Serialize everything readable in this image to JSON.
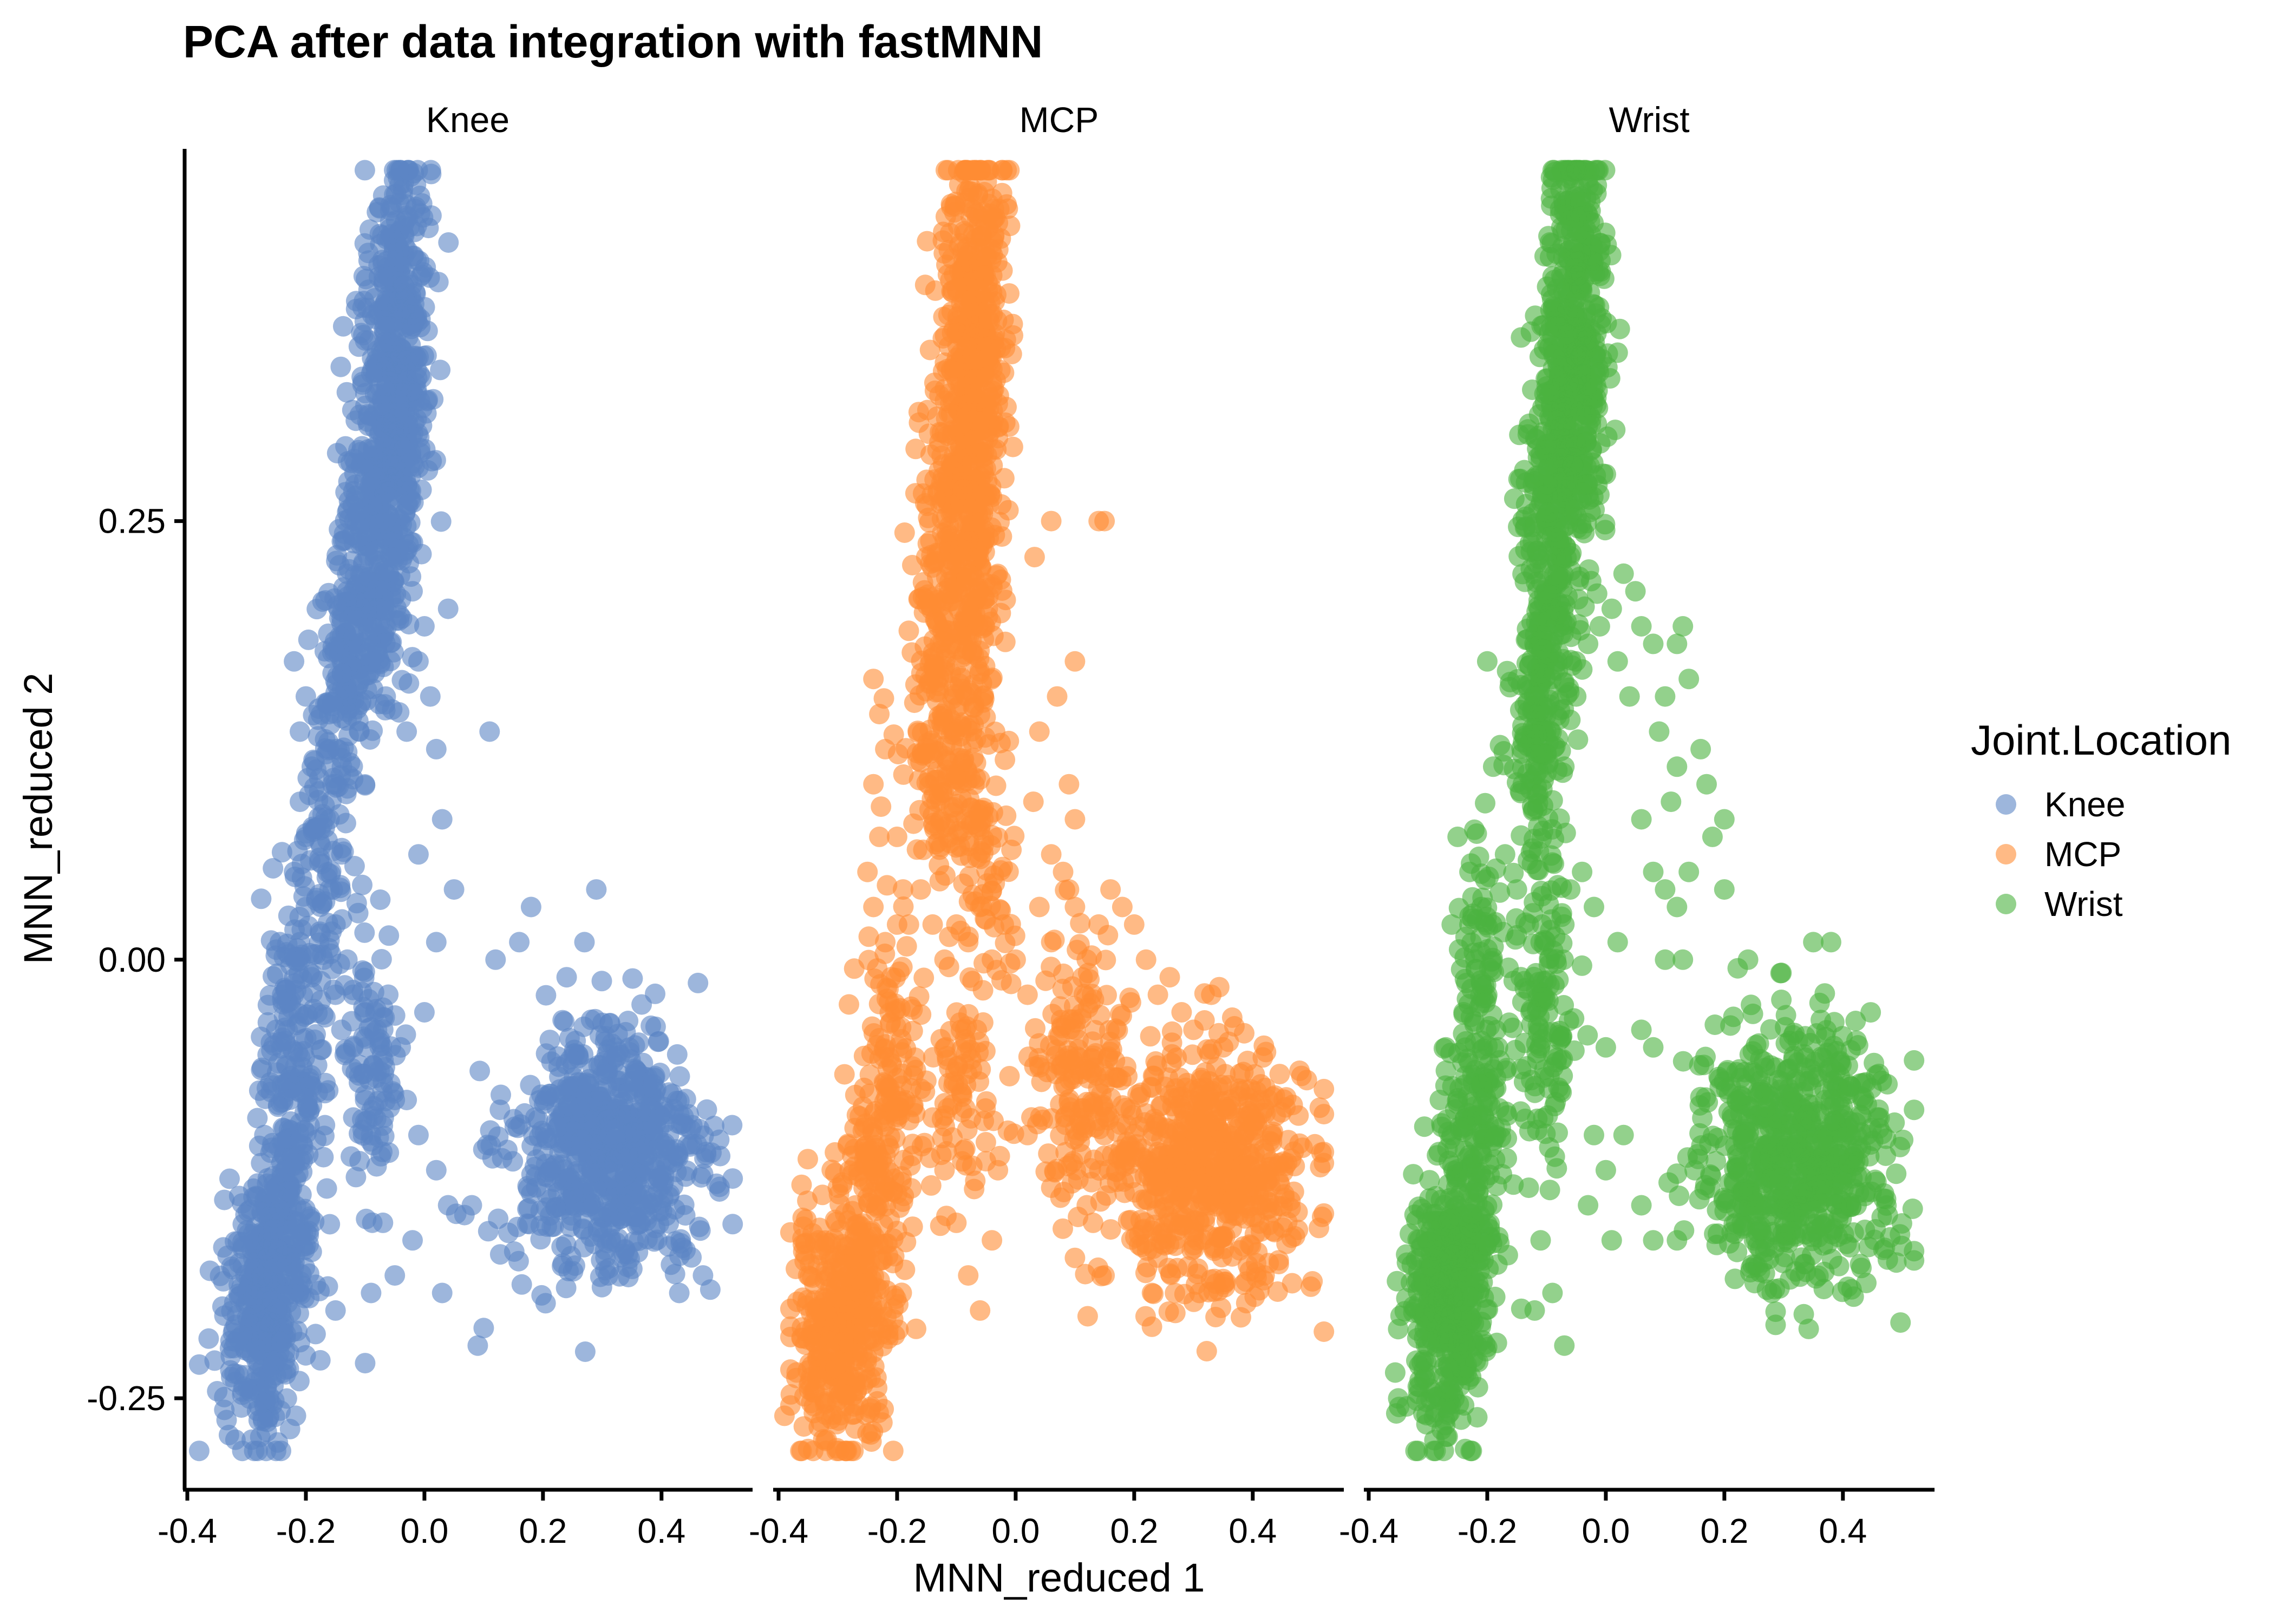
{
  "chart_data": {
    "type": "scatter",
    "title": "PCA after data integration with fastMNN",
    "xlabel": "MNN_reduced 1",
    "ylabel": "MNN_reduced 2",
    "xlim": [
      -0.4,
      0.55
    ],
    "ylim": [
      -0.3,
      0.46
    ],
    "x_ticks": [
      -0.4,
      -0.2,
      0.0,
      0.2,
      0.4
    ],
    "x_tick_labels": [
      "-0.4",
      "-0.2",
      "0.0",
      "0.2",
      "0.4"
    ],
    "y_ticks": [
      0.25,
      0.0,
      -0.25
    ],
    "y_tick_labels": [
      "0.25",
      "0.00",
      "-0.25"
    ],
    "grid": false,
    "facets": [
      "Knee",
      "MCP",
      "Wrist"
    ],
    "legend": {
      "title": "Joint.Location",
      "placement": "right",
      "entries": [
        "Knee",
        "MCP",
        "Wrist"
      ]
    },
    "colors": {
      "Knee": "#5B86C5",
      "MCP": "#FF8C33",
      "Wrist": "#4BB33F"
    },
    "point_opacity": 0.6,
    "series": [
      {
        "name": "Knee",
        "facet": "Knee",
        "points": [
          [
            -0.22,
            0.17
          ],
          [
            -0.2,
            0.15
          ],
          [
            -0.21,
            0.13
          ],
          [
            -0.19,
            0.11
          ],
          [
            -0.21,
            0.09
          ],
          [
            -0.2,
            0.07
          ],
          [
            -0.22,
            0.05
          ],
          [
            -0.2,
            0.03
          ],
          [
            -0.21,
            0.01
          ],
          [
            -0.19,
            -0.01
          ],
          [
            -0.16,
            0.12
          ],
          [
            -0.15,
            0.1
          ],
          [
            -0.16,
            0.08
          ],
          [
            -0.14,
            0.06
          ],
          [
            -0.16,
            0.04
          ],
          [
            -0.15,
            0.02
          ],
          [
            -0.17,
            0.0
          ],
          [
            -0.15,
            -0.02
          ],
          [
            -0.13,
            0.0
          ],
          [
            -0.12,
            -0.02
          ],
          [
            -0.14,
            -0.04
          ],
          [
            -0.12,
            -0.05
          ],
          [
            -0.1,
            -0.03
          ],
          [
            -0.11,
            -0.06
          ],
          [
            -0.1,
            -0.08
          ],
          [
            -0.12,
            -0.09
          ],
          [
            -0.08,
            -0.04
          ],
          [
            -0.07,
            -0.07
          ],
          [
            -0.09,
            -0.1
          ],
          [
            -0.06,
            -0.11
          ],
          [
            -0.05,
            -0.08
          ],
          [
            -0.04,
            -0.05
          ],
          [
            -0.02,
            0.21
          ],
          [
            0.0,
            0.19
          ],
          [
            -0.01,
            0.17
          ],
          [
            0.01,
            0.15
          ],
          [
            -0.03,
            0.13
          ],
          [
            0.02,
            0.12
          ],
          [
            0.04,
            0.2
          ],
          [
            0.03,
            0.08
          ],
          [
            -0.01,
            0.06
          ],
          [
            0.05,
            0.04
          ],
          [
            0.02,
            0.01
          ],
          [
            0.0,
            -0.03
          ],
          [
            -0.03,
            -0.08
          ],
          [
            -0.01,
            -0.1
          ],
          [
            0.02,
            -0.12
          ],
          [
            0.04,
            -0.14
          ],
          [
            -0.02,
            -0.16
          ],
          [
            0.03,
            -0.19
          ],
          [
            0.08,
            -0.14
          ],
          [
            0.1,
            -0.21
          ],
          [
            0.11,
            0.13
          ],
          [
            0.12,
            -0.0
          ],
          [
            -0.09,
            -0.19
          ],
          [
            -0.07,
            -0.15
          ],
          [
            -0.05,
            -0.18
          ],
          [
            -0.1,
            -0.23
          ],
          [
            -0.25,
            -0.04
          ],
          [
            -0.26,
            -0.07
          ],
          [
            -0.27,
            -0.1
          ],
          [
            -0.24,
            -0.02
          ],
          [
            0.18,
            0.03
          ],
          [
            0.16,
            0.01
          ],
          [
            0.27,
            0.01
          ],
          [
            0.29,
            0.04
          ],
          [
            0.24,
            -0.01
          ],
          [
            0.31,
            -0.18
          ],
          [
            0.43,
            -0.19
          ],
          [
            0.47,
            -0.18
          ],
          [
            0.09,
            -0.22
          ],
          [
            -0.15,
            -0.2
          ]
        ],
        "dense_regions": [
          {
            "cx": -0.04,
            "cy": 0.37,
            "sx": 0.025,
            "sy": 0.05,
            "n": 320
          },
          {
            "cx": -0.06,
            "cy": 0.29,
            "sx": 0.03,
            "sy": 0.045,
            "n": 280
          },
          {
            "cx": -0.09,
            "cy": 0.22,
            "sx": 0.03,
            "sy": 0.04,
            "n": 200
          },
          {
            "cx": -0.13,
            "cy": 0.16,
            "sx": 0.025,
            "sy": 0.035,
            "n": 120
          },
          {
            "cx": -0.17,
            "cy": 0.06,
            "sx": 0.02,
            "sy": 0.05,
            "n": 90
          },
          {
            "cx": -0.22,
            "cy": -0.05,
            "sx": 0.025,
            "sy": 0.05,
            "n": 160
          },
          {
            "cx": -0.23,
            "cy": -0.13,
            "sx": 0.025,
            "sy": 0.035,
            "n": 120
          },
          {
            "cx": -0.27,
            "cy": -0.2,
            "sx": 0.035,
            "sy": 0.035,
            "n": 360
          },
          {
            "cx": -0.09,
            "cy": -0.06,
            "sx": 0.025,
            "sy": 0.04,
            "n": 90
          },
          {
            "cx": 0.31,
            "cy": -0.11,
            "sx": 0.08,
            "sy": 0.035,
            "n": 700
          }
        ]
      },
      {
        "name": "MCP",
        "facet": "MCP",
        "points": [
          [
            -0.24,
            0.16
          ],
          [
            -0.23,
            0.14
          ],
          [
            -0.22,
            0.12
          ],
          [
            -0.24,
            0.1
          ],
          [
            -0.23,
            0.07
          ],
          [
            -0.25,
            0.05
          ],
          [
            -0.24,
            0.03
          ],
          [
            -0.22,
            0.01
          ],
          [
            -0.2,
            0.02
          ],
          [
            -0.21,
            -0.01
          ],
          [
            -0.2,
            0.07
          ],
          [
            -0.19,
            0.04
          ],
          [
            -0.18,
            0.02
          ],
          [
            -0.16,
            0.04
          ],
          [
            -0.14,
            0.02
          ],
          [
            -0.12,
            0.0
          ],
          [
            -0.1,
            0.02
          ],
          [
            -0.08,
            0.01
          ],
          [
            -0.06,
            0.03
          ],
          [
            -0.04,
            0.0
          ],
          [
            -0.02,
            0.02
          ],
          [
            0.0,
            0.0
          ],
          [
            0.02,
            -0.02
          ],
          [
            0.04,
            0.03
          ],
          [
            0.06,
            0.01
          ],
          [
            0.08,
            0.05
          ],
          [
            0.1,
            0.03
          ],
          [
            0.12,
            0.0
          ],
          [
            0.14,
            0.02
          ],
          [
            0.16,
            0.04
          ],
          [
            0.18,
            0.03
          ],
          [
            0.2,
            0.02
          ],
          [
            0.22,
            0.0
          ],
          [
            0.24,
            -0.02
          ],
          [
            0.26,
            -0.01
          ],
          [
            0.28,
            -0.03
          ],
          [
            0.3,
            -0.04
          ],
          [
            0.33,
            -0.02
          ],
          [
            0.35,
            -0.05
          ],
          [
            0.1,
            0.17
          ],
          [
            0.06,
            0.25
          ],
          [
            0.14,
            0.25
          ],
          [
            0.15,
            0.25
          ],
          [
            0.07,
            0.15
          ],
          [
            0.09,
            0.1
          ],
          [
            0.1,
            0.08
          ],
          [
            0.04,
            0.13
          ],
          [
            0.03,
            0.09
          ],
          [
            0.06,
            0.06
          ],
          [
            -0.14,
            -0.09
          ],
          [
            -0.12,
            -0.12
          ],
          [
            -0.1,
            -0.15
          ],
          [
            -0.08,
            -0.18
          ],
          [
            -0.06,
            -0.2
          ],
          [
            -0.04,
            -0.16
          ],
          [
            -0.03,
            -0.12
          ],
          [
            0.02,
            -0.1
          ],
          [
            0.04,
            -0.06
          ],
          [
            0.06,
            -0.13
          ],
          [
            0.12,
            -0.14
          ],
          [
            0.1,
            -0.17
          ],
          [
            0.15,
            -0.18
          ],
          [
            0.23,
            -0.19
          ],
          [
            0.31,
            -0.19
          ],
          [
            0.42,
            -0.18
          ],
          [
            -0.39,
            -0.26
          ],
          [
            -0.25,
            -0.27
          ],
          [
            -0.28,
            -0.2
          ],
          [
            0.09,
            0.04
          ],
          [
            -0.06,
            0.45
          ],
          [
            -0.03,
            0.42
          ],
          [
            -0.35,
            -0.18
          ],
          [
            -0.3,
            -0.13
          ]
        ],
        "dense_regions": [
          {
            "cx": -0.07,
            "cy": 0.38,
            "sx": 0.025,
            "sy": 0.05,
            "n": 320
          },
          {
            "cx": -0.08,
            "cy": 0.29,
            "sx": 0.03,
            "sy": 0.045,
            "n": 280
          },
          {
            "cx": -0.1,
            "cy": 0.21,
            "sx": 0.035,
            "sy": 0.04,
            "n": 220
          },
          {
            "cx": -0.11,
            "cy": 0.12,
            "sx": 0.04,
            "sy": 0.035,
            "n": 160
          },
          {
            "cx": -0.06,
            "cy": 0.06,
            "sx": 0.04,
            "sy": 0.03,
            "n": 80
          },
          {
            "cx": -0.21,
            "cy": -0.06,
            "sx": 0.025,
            "sy": 0.04,
            "n": 120
          },
          {
            "cx": -0.09,
            "cy": -0.07,
            "sx": 0.03,
            "sy": 0.03,
            "n": 80
          },
          {
            "cx": -0.24,
            "cy": -0.15,
            "sx": 0.03,
            "sy": 0.04,
            "n": 150
          },
          {
            "cx": -0.3,
            "cy": -0.21,
            "sx": 0.04,
            "sy": 0.035,
            "n": 360
          },
          {
            "cx": 0.11,
            "cy": -0.07,
            "sx": 0.04,
            "sy": 0.035,
            "n": 180
          },
          {
            "cx": 0.33,
            "cy": -0.12,
            "sx": 0.08,
            "sy": 0.035,
            "n": 650
          }
        ]
      },
      {
        "name": "Wrist",
        "facet": "Wrist",
        "points": [
          [
            -0.25,
            0.07
          ],
          [
            -0.23,
            0.05
          ],
          [
            -0.26,
            0.02
          ],
          [
            -0.22,
            0.0
          ],
          [
            -0.24,
            -0.03
          ],
          [
            -0.27,
            -0.05
          ],
          [
            -0.28,
            -0.08
          ],
          [
            -0.26,
            -0.1
          ],
          [
            -0.21,
            0.03
          ],
          [
            -0.2,
            -0.02
          ],
          [
            -0.17,
            0.06
          ],
          [
            -0.15,
            0.04
          ],
          [
            -0.13,
            0.02
          ],
          [
            -0.11,
            0.01
          ],
          [
            -0.06,
            0.04
          ],
          [
            -0.04,
            0.05
          ],
          [
            -0.07,
            0.02
          ],
          [
            -0.14,
            0.1
          ],
          [
            -0.19,
            0.11
          ],
          [
            -0.2,
            0.17
          ],
          [
            -0.07,
            0.11
          ],
          [
            -0.05,
            0.15
          ],
          [
            -0.03,
            0.18
          ],
          [
            -0.01,
            0.19
          ],
          [
            0.01,
            0.2
          ],
          [
            0.03,
            0.22
          ],
          [
            0.05,
            0.21
          ],
          [
            0.02,
            0.17
          ],
          [
            0.04,
            0.15
          ],
          [
            0.06,
            0.19
          ],
          [
            0.08,
            0.18
          ],
          [
            0.1,
            0.15
          ],
          [
            0.12,
            0.18
          ],
          [
            0.14,
            0.16
          ],
          [
            0.16,
            0.12
          ],
          [
            0.17,
            0.1
          ],
          [
            0.18,
            0.07
          ],
          [
            0.2,
            0.04
          ],
          [
            0.2,
            0.08
          ],
          [
            0.13,
            0.19
          ],
          [
            0.12,
            0.11
          ],
          [
            0.09,
            0.13
          ],
          [
            0.11,
            0.09
          ],
          [
            0.08,
            0.05
          ],
          [
            0.06,
            0.08
          ],
          [
            0.1,
            0.04
          ],
          [
            0.12,
            0.03
          ],
          [
            0.14,
            0.05
          ],
          [
            0.1,
            -0.0
          ],
          [
            0.13,
            -0.0
          ],
          [
            0.02,
            0.01
          ],
          [
            -0.02,
            0.03
          ],
          [
            0.0,
            -0.05
          ],
          [
            -0.02,
            -0.1
          ],
          [
            0.03,
            -0.1
          ],
          [
            0.0,
            -0.12
          ],
          [
            -0.03,
            -0.14
          ],
          [
            0.01,
            -0.16
          ],
          [
            0.06,
            -0.14
          ],
          [
            0.08,
            -0.16
          ],
          [
            -0.13,
            -0.13
          ],
          [
            -0.11,
            -0.16
          ],
          [
            -0.09,
            -0.19
          ],
          [
            -0.07,
            -0.22
          ],
          [
            -0.12,
            -0.2
          ],
          [
            0.28,
            -0.19
          ],
          [
            0.22,
            -0.15
          ],
          [
            0.24,
            0.0
          ],
          [
            0.35,
            0.01
          ],
          [
            0.38,
            0.01
          ],
          [
            0.25,
            -0.16
          ],
          [
            0.15,
            -0.12
          ],
          [
            0.12,
            -0.16
          ],
          [
            0.08,
            -0.05
          ],
          [
            0.06,
            -0.04
          ]
        ],
        "dense_regions": [
          {
            "cx": -0.05,
            "cy": 0.38,
            "sx": 0.025,
            "sy": 0.05,
            "n": 320
          },
          {
            "cx": -0.07,
            "cy": 0.29,
            "sx": 0.03,
            "sy": 0.045,
            "n": 280
          },
          {
            "cx": -0.1,
            "cy": 0.2,
            "sx": 0.025,
            "sy": 0.045,
            "n": 200
          },
          {
            "cx": -0.12,
            "cy": 0.11,
            "sx": 0.02,
            "sy": 0.04,
            "n": 110
          },
          {
            "cx": -0.21,
            "cy": -0.03,
            "sx": 0.025,
            "sy": 0.05,
            "n": 130
          },
          {
            "cx": -0.1,
            "cy": -0.03,
            "sx": 0.025,
            "sy": 0.04,
            "n": 120
          },
          {
            "cx": -0.23,
            "cy": -0.13,
            "sx": 0.03,
            "sy": 0.035,
            "n": 140
          },
          {
            "cx": -0.27,
            "cy": -0.2,
            "sx": 0.035,
            "sy": 0.035,
            "n": 380
          },
          {
            "cx": 0.32,
            "cy": -0.11,
            "sx": 0.08,
            "sy": 0.035,
            "n": 680
          }
        ]
      }
    ]
  }
}
